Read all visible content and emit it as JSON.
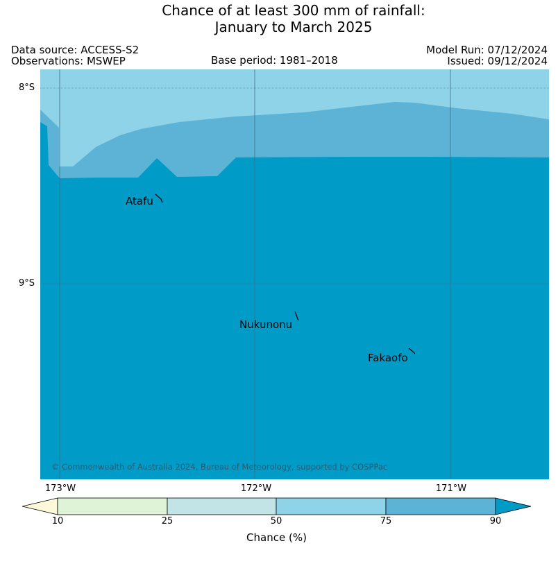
{
  "title": {
    "line1": "Chance of at least 300 mm of rainfall:",
    "line2": "January to March 2025"
  },
  "meta": {
    "data_source": "Data source: ACCESS-S2",
    "observations": "Observations: MSWEP",
    "base_period": "Base period: 1981–2018",
    "model_run": "Model Run: 07/12/2024",
    "issued": "Issued: 09/12/2024"
  },
  "axes": {
    "lat_labels": [
      "8°S",
      "9°S"
    ],
    "lon_labels": [
      "173°W",
      "172°W",
      "171°W"
    ]
  },
  "islands": [
    "Atafu",
    "Nukunonu",
    "Fakaofo"
  ],
  "copyright": "© Commonwealth of Australia 2024, Bureau of Meteorology, supported by COSPPac",
  "colorbar": {
    "ticks": [
      "10",
      "25",
      "50",
      "75",
      "90"
    ],
    "label": "Chance (%)",
    "colors": {
      "below_10": "#fdf8d8",
      "10_25": "#dff3d6",
      "25_50": "#c2e4e6",
      "50_75": "#8fd3e8",
      "75_90": "#5db3d5",
      "above_90": "#009bc7"
    }
  },
  "map_colors": {
    "band_50_75": "#8fd3e8",
    "band_75_90": "#5db3d5",
    "band_above_90": "#009bc7",
    "gridline": "#3b6f86"
  }
}
